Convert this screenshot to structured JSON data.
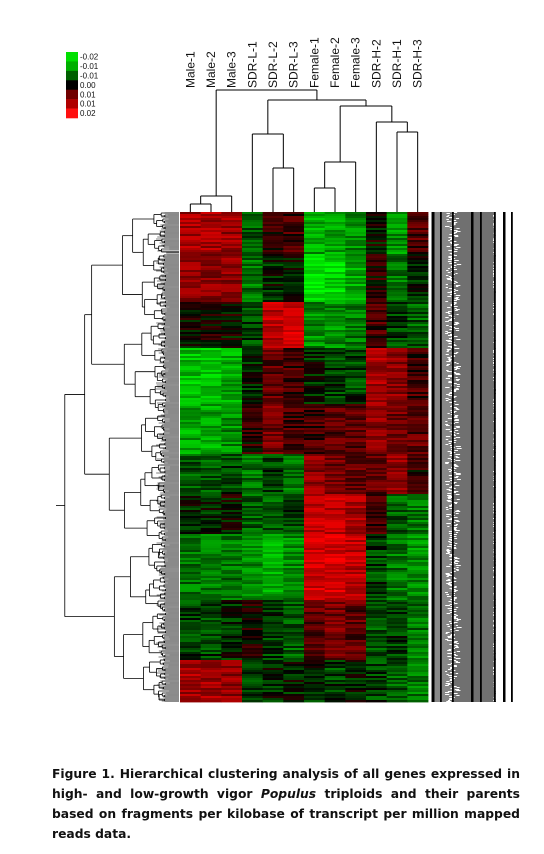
{
  "figure": {
    "color_key": {
      "labels": [
        "-0.02",
        "-0.01",
        "-0.01",
        "0.00",
        "0.01",
        "0.01",
        "0.02"
      ],
      "colors": [
        "#00e000",
        "#00b000",
        "#006000",
        "#000000",
        "#700000",
        "#b00000",
        "#ff1010"
      ]
    },
    "columns": [
      "Male-1",
      "Male-2",
      "Male-3",
      "SDR-L-1",
      "SDR-L-2",
      "SDR-L-3",
      "Female-1",
      "Female-2",
      "Female-3",
      "SDR-H-2",
      "SDR-H-1",
      "SDR-H-3"
    ]
  },
  "chart_data": {
    "type": "heatmap",
    "title": "",
    "xlabel": "",
    "ylabel": "",
    "columns": [
      "Male-1",
      "Male-2",
      "Male-3",
      "SDR-L-1",
      "SDR-L-2",
      "SDR-L-3",
      "Female-1",
      "Female-2",
      "Female-3",
      "SDR-H-2",
      "SDR-H-1",
      "SDR-H-3"
    ],
    "color_scale": {
      "min": -0.02,
      "max": 0.02,
      "key_labels": [
        "-0.02",
        "-0.01",
        "-0.01",
        "0.00",
        "0.01",
        "0.01",
        "0.02"
      ],
      "low_color": "#00ff00",
      "mid_color": "#000000",
      "high_color": "#ff0000"
    },
    "row_blocks": [
      {
        "fraction": 0.085,
        "values": [
          0.012,
          0.012,
          0.011,
          -0.006,
          0.002,
          0.004,
          -0.012,
          -0.012,
          -0.01,
          0.0,
          -0.01,
          0.005
        ]
      },
      {
        "fraction": 0.095,
        "values": [
          0.01,
          0.01,
          0.01,
          -0.008,
          -0.002,
          0.0,
          -0.018,
          -0.016,
          -0.012,
          0.002,
          -0.008,
          -0.002
        ]
      },
      {
        "fraction": 0.09,
        "values": [
          0.0,
          0.001,
          0.0,
          -0.004,
          0.014,
          0.016,
          -0.01,
          -0.01,
          -0.008,
          0.004,
          -0.004,
          -0.006
        ]
      },
      {
        "fraction": 0.11,
        "values": [
          -0.014,
          -0.014,
          -0.012,
          -0.002,
          0.006,
          0.004,
          -0.002,
          -0.004,
          -0.004,
          0.012,
          0.01,
          0.004
        ]
      },
      {
        "fraction": 0.1,
        "values": [
          -0.012,
          -0.012,
          -0.01,
          0.002,
          0.008,
          0.004,
          0.004,
          0.006,
          0.006,
          0.01,
          0.008,
          0.006
        ]
      },
      {
        "fraction": 0.08,
        "values": [
          -0.006,
          -0.006,
          -0.004,
          -0.008,
          -0.004,
          -0.008,
          0.01,
          0.008,
          0.006,
          0.006,
          0.01,
          0.002
        ]
      },
      {
        "fraction": 0.08,
        "values": [
          -0.002,
          -0.002,
          0.0,
          -0.006,
          -0.006,
          -0.004,
          0.014,
          0.014,
          0.012,
          0.004,
          -0.006,
          -0.008
        ]
      },
      {
        "fraction": 0.13,
        "values": [
          -0.008,
          -0.008,
          -0.008,
          -0.01,
          -0.012,
          -0.01,
          0.016,
          0.016,
          0.014,
          -0.004,
          -0.008,
          -0.01
        ]
      },
      {
        "fraction": 0.12,
        "values": [
          -0.004,
          -0.004,
          -0.002,
          0.002,
          -0.004,
          -0.006,
          0.006,
          0.008,
          0.006,
          -0.006,
          -0.004,
          -0.008
        ]
      },
      {
        "fraction": 0.09,
        "values": [
          0.012,
          0.012,
          0.01,
          -0.004,
          -0.002,
          -0.002,
          -0.002,
          -0.004,
          -0.002,
          -0.004,
          -0.006,
          -0.008
        ]
      }
    ]
  },
  "caption": {
    "label": "Figure 1.",
    "text_before": "Hierarchical clustering analysis of all genes expressed in high- and low-growth vigor ",
    "italic": "Populus",
    "text_after": " triploids and their parents based on fragments per kilobase of transcript per million mapped reads data."
  }
}
